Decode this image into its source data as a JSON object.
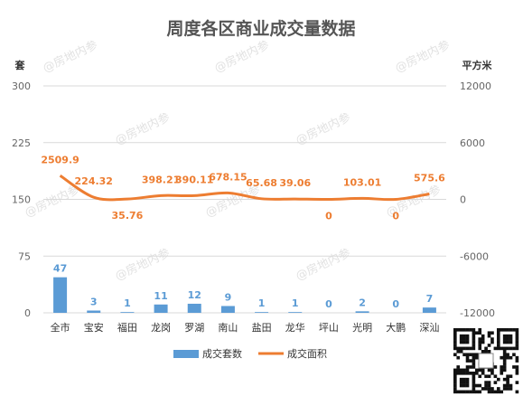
{
  "chart_data": {
    "type": "bar",
    "title": "周度各区商业成交量数据",
    "categories": [
      "全市",
      "宝安",
      "福田",
      "龙岗",
      "罗湖",
      "南山",
      "盐田",
      "龙华",
      "坪山",
      "光明",
      "大鹏",
      "深汕"
    ],
    "left_axis": {
      "unit": "套",
      "ticks": [
        "300",
        "225",
        "150",
        "75",
        "0"
      ],
      "ylim": [
        0,
        300
      ]
    },
    "right_axis": {
      "unit": "平方米",
      "ticks": [
        "12000",
        "6000",
        "0",
        "-6000",
        "-12000"
      ],
      "ylim": [
        -12000,
        12000
      ]
    },
    "series": [
      {
        "name": "成交套数",
        "type": "bar",
        "axis": "left",
        "color": "#5b9bd5",
        "values": [
          47,
          3,
          1,
          11,
          12,
          9,
          1,
          1,
          0,
          2,
          0,
          7
        ],
        "labels": [
          "47",
          "3",
          "1",
          "11",
          "12",
          "9",
          "1",
          "1",
          "0",
          "2",
          "0",
          "7"
        ]
      },
      {
        "name": "成交面积",
        "type": "line",
        "axis": "right",
        "color": "#ed7d31",
        "values": [
          2509.9,
          224.32,
          35.76,
          398.21,
          390.11,
          678.15,
          65.68,
          39.06,
          0,
          103.01,
          0,
          575.6
        ],
        "labels": [
          "2509.9",
          "224.32",
          "35.76",
          "398.21",
          "390.11",
          "678.15",
          "65.68",
          "39.06",
          "0",
          "103.01",
          "0",
          "575.6"
        ]
      }
    ],
    "grid": true,
    "legend_position": "bottom"
  },
  "watermark_text": "@房地内参"
}
